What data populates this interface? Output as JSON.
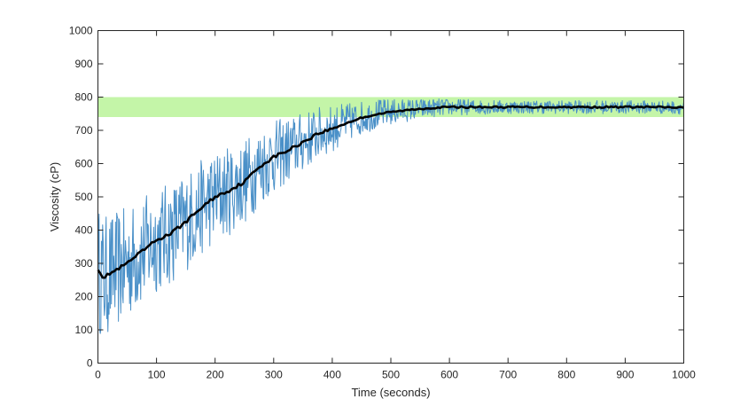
{
  "chart_data": {
    "type": "line",
    "title": "",
    "xlabel": "Time (seconds)",
    "ylabel": "Viscosity (cP)",
    "xlim": [
      0,
      1000
    ],
    "ylim": [
      0,
      1000
    ],
    "xticks": [
      0,
      100,
      200,
      300,
      400,
      500,
      600,
      700,
      800,
      900,
      1000
    ],
    "yticks": [
      0,
      100,
      200,
      300,
      400,
      500,
      600,
      700,
      800,
      900,
      1000
    ],
    "grid": false,
    "legend": "none",
    "band": {
      "y_min": 740,
      "y_max": 800,
      "color": "#c4f5a8"
    },
    "series": [
      {
        "role": "raw-measurement",
        "color": "#4a90c8",
        "noise_envelope": {
          "x": [
            0,
            50,
            100,
            150,
            200,
            250,
            300,
            350,
            400,
            450,
            500,
            550,
            600,
            700,
            800,
            900,
            1000
          ],
          "amplitude": [
            190,
            170,
            160,
            150,
            140,
            130,
            110,
            90,
            70,
            50,
            40,
            30,
            25,
            20,
            20,
            20,
            20
          ]
        }
      },
      {
        "role": "smoothed",
        "color": "#000000",
        "x": [
          0,
          10,
          20,
          30,
          50,
          75,
          100,
          125,
          150,
          175,
          200,
          225,
          250,
          275,
          300,
          325,
          350,
          375,
          400,
          425,
          450,
          475,
          500,
          525,
          550,
          575,
          600,
          650,
          700,
          750,
          800,
          850,
          900,
          950,
          1000
        ],
        "y": [
          285,
          255,
          270,
          278,
          300,
          335,
          370,
          390,
          425,
          465,
          500,
          520,
          545,
          590,
          620,
          640,
          665,
          690,
          705,
          722,
          738,
          748,
          755,
          760,
          765,
          768,
          770,
          770,
          770,
          770,
          770,
          770,
          770,
          770,
          768
        ]
      }
    ]
  }
}
